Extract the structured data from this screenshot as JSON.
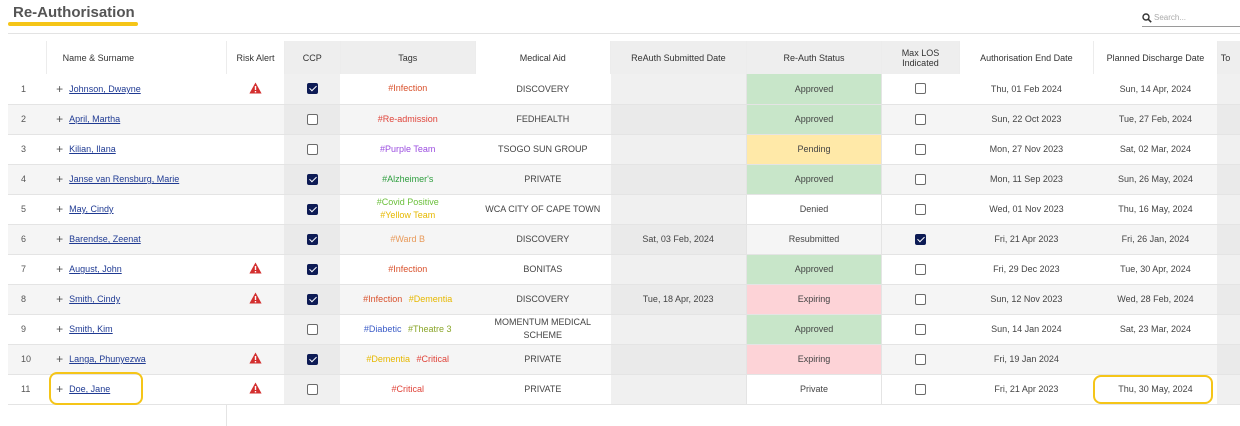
{
  "page": {
    "title": "Re-Authorisation"
  },
  "search": {
    "placeholder": "Search..."
  },
  "colors": {
    "accent_highlight": "#f5c518",
    "approved": "#c8e6c9",
    "pending": "#ffe9a8",
    "expiring": "#fdd3d7",
    "checkbox_checked": "#0d1b55",
    "alert_red": "#d32f2f",
    "link": "#1f3a93"
  },
  "headers": {
    "name": "Name & Surname",
    "risk": "Risk Alert",
    "ccp": "CCP",
    "tags": "Tags",
    "aid": "Medical Aid",
    "submitted": "ReAuth Submitted Date",
    "status": "Re-Auth Status",
    "maxlos": "Max LOS Indicated",
    "authend": "Authorisation End Date",
    "discharge": "Planned Discharge Date",
    "extra": "To"
  },
  "rows": [
    {
      "num": "1",
      "name": "Johnson, Dwayne",
      "risk": true,
      "ccp": true,
      "tags": [
        {
          "text": "#Infection",
          "color": "#d9512c"
        }
      ],
      "aid": "DISCOVERY",
      "submitted": "",
      "status": "Approved",
      "maxlos": false,
      "authend": "Thu, 01 Feb 2024",
      "discharge": "Sun, 14 Apr, 2024"
    },
    {
      "num": "2",
      "name": "April, Martha",
      "risk": false,
      "ccp": false,
      "tags": [
        {
          "text": "#Re-admission",
          "color": "#e0443a"
        }
      ],
      "aid": "FEDHEALTH",
      "submitted": "",
      "status": "Approved",
      "maxlos": false,
      "authend": "Sun, 22 Oct 2023",
      "discharge": "Tue, 27 Feb, 2024"
    },
    {
      "num": "3",
      "name": "Kilian, Ilana",
      "risk": false,
      "ccp": false,
      "tags": [
        {
          "text": "#Purple Team",
          "color": "#9b4de0"
        }
      ],
      "aid": "TSOGO SUN GROUP",
      "submitted": "",
      "status": "Pending",
      "maxlos": false,
      "authend": "Mon, 27 Nov 2023",
      "discharge": "Sat, 02 Mar, 2024"
    },
    {
      "num": "4",
      "name": "Janse van Rensburg, Marie",
      "risk": false,
      "ccp": true,
      "tags": [
        {
          "text": "#Alzheimer's",
          "color": "#2e9e3e"
        }
      ],
      "aid": "PRIVATE",
      "submitted": "",
      "status": "Approved",
      "maxlos": false,
      "authend": "Mon, 11 Sep 2023",
      "discharge": "Sun, 26 May, 2024"
    },
    {
      "num": "5",
      "name": "May, Cindy",
      "risk": false,
      "ccp": true,
      "tags": [
        {
          "text": "#Covid Positive",
          "color": "#6abf3a"
        },
        {
          "text": "#Yellow Team",
          "color": "#e6b800"
        }
      ],
      "aid": "WCA CITY OF CAPE TOWN",
      "submitted": "",
      "status": "Denied",
      "maxlos": false,
      "authend": "Wed, 01 Nov 2023",
      "discharge": "Thu, 16 May, 2024"
    },
    {
      "num": "6",
      "name": "Barendse, Zeenat",
      "risk": false,
      "ccp": true,
      "tags": [
        {
          "text": "#Ward B",
          "color": "#e89a5a"
        }
      ],
      "aid": "DISCOVERY",
      "submitted": "Sat, 03 Feb, 2024",
      "status": "Resubmitted",
      "maxlos": true,
      "authend": "Fri, 21 Apr 2023",
      "discharge": "Fri, 26 Jan, 2024"
    },
    {
      "num": "7",
      "name": "August, John",
      "risk": true,
      "ccp": true,
      "tags": [
        {
          "text": "#Infection",
          "color": "#d9512c"
        }
      ],
      "aid": "BONITAS",
      "submitted": "",
      "status": "Approved",
      "maxlos": false,
      "authend": "Fri, 29 Dec 2023",
      "discharge": "Tue, 30 Apr, 2024"
    },
    {
      "num": "8",
      "name": "Smith, Cindy",
      "risk": true,
      "ccp": true,
      "tags": [
        {
          "text": "#Infection",
          "color": "#d9512c"
        },
        {
          "text": "#Dementia",
          "color": "#e6b800"
        }
      ],
      "aid": "DISCOVERY",
      "submitted": "Tue, 18 Apr, 2023",
      "status": "Expiring",
      "maxlos": false,
      "authend": "Sun, 12 Nov 2023",
      "discharge": "Wed, 28 Feb, 2024"
    },
    {
      "num": "9",
      "name": "Smith, Kim",
      "risk": false,
      "ccp": false,
      "tags": [
        {
          "text": "#Diabetic",
          "color": "#3a5bc7"
        },
        {
          "text": "#Theatre 3",
          "color": "#8aa62a"
        }
      ],
      "aid": "MOMENTUM MEDICAL SCHEME",
      "submitted": "",
      "status": "Approved",
      "maxlos": false,
      "authend": "Sun, 14 Jan 2024",
      "discharge": "Sat, 23 Mar, 2024"
    },
    {
      "num": "10",
      "name": "Langa, Phunyezwa",
      "risk": true,
      "ccp": true,
      "tags": [
        {
          "text": "#Dementia",
          "color": "#e6b800"
        },
        {
          "text": "#Critical",
          "color": "#e0443a"
        }
      ],
      "aid": "PRIVATE",
      "submitted": "",
      "status": "Expiring",
      "maxlos": false,
      "authend": "Fri, 19 Jan 2024",
      "discharge": ""
    },
    {
      "num": "11",
      "name": "Doe, Jane",
      "risk": true,
      "ccp": false,
      "tags": [
        {
          "text": "#Critical",
          "color": "#e0443a"
        }
      ],
      "aid": "PRIVATE",
      "submitted": "",
      "status": "Private",
      "maxlos": false,
      "authend": "Fri, 21 Apr 2023",
      "discharge": "Thu, 30 May, 2024"
    }
  ]
}
